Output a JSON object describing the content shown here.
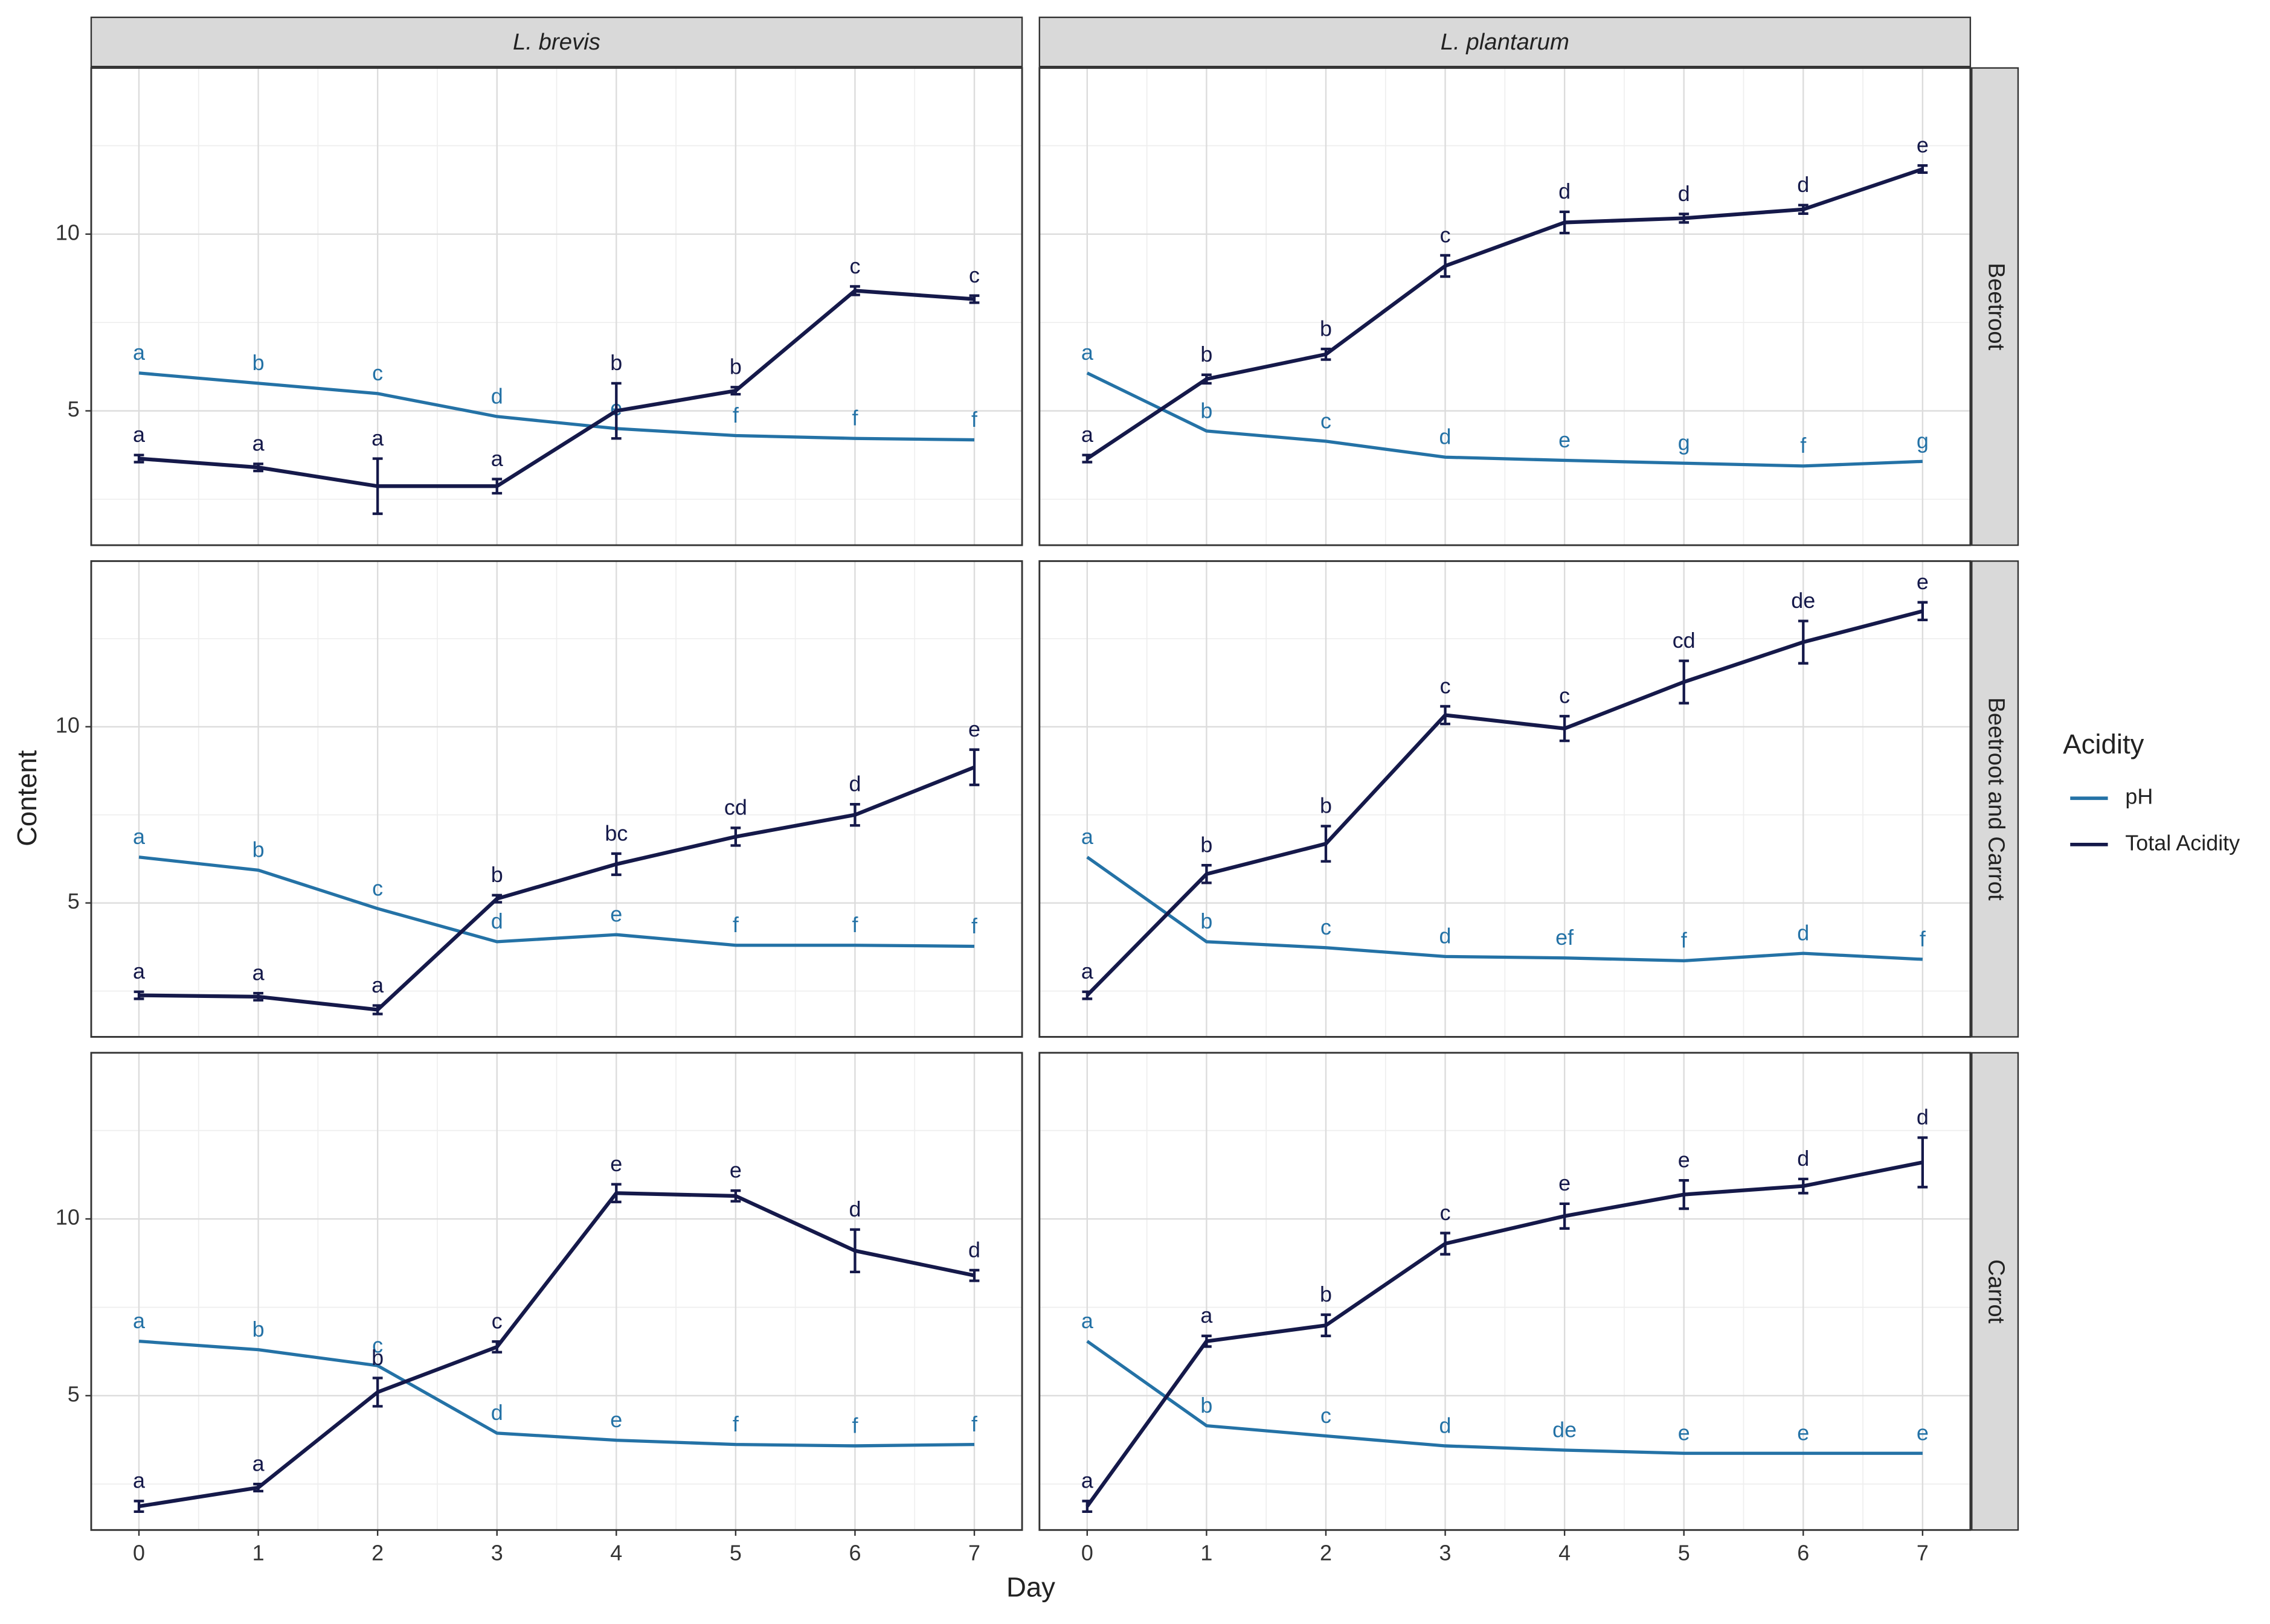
{
  "chart_data": {
    "type": "line",
    "x_label": "Day",
    "y_label": "Content",
    "legend_title": "Acidity",
    "columns": [
      "L. brevis",
      "L. plantarum"
    ],
    "rows": [
      "Beetroot",
      "Beetroot and Carrot",
      "Carrot"
    ],
    "series": [
      {
        "name": "pH",
        "color": "#2472a6"
      },
      {
        "name": "Total Acidity",
        "color": "#15194a"
      }
    ],
    "x": [
      0,
      1,
      2,
      3,
      4,
      5,
      6,
      7
    ],
    "xlim": [
      -0.4,
      7.4
    ],
    "xticks": [
      0,
      1,
      2,
      3,
      4,
      5,
      6,
      7
    ],
    "x_minor_ticks": [
      0.5,
      1.5,
      2.5,
      3.5,
      4.5,
      5.5,
      6.5
    ],
    "ylim": [
      1.2,
      14.7
    ],
    "yticks": [
      5,
      10
    ],
    "y_minor_ticks": [
      2.5,
      7.5,
      12.5
    ],
    "grid": true,
    "panels": [
      {
        "series": [
          {
            "values": [
              6.07,
              5.78,
              5.49,
              4.84,
              4.5,
              4.3,
              4.22,
              4.18
            ],
            "labels": [
              "a",
              "b",
              "c",
              "d",
              "e",
              "f",
              "f",
              "f"
            ]
          },
          {
            "values": [
              3.65,
              3.4,
              2.87,
              2.87,
              5.0,
              5.57,
              8.4,
              8.16
            ],
            "errors": [
              0.1,
              0.1,
              0.78,
              0.2,
              0.78,
              0.1,
              0.12,
              0.1
            ],
            "labels": [
              "a",
              "a",
              "a",
              "a",
              "b",
              "b",
              "c",
              "c"
            ]
          }
        ]
      },
      {
        "series": [
          {
            "values": [
              6.07,
              4.43,
              4.14,
              3.69,
              3.6,
              3.52,
              3.44,
              3.57
            ],
            "labels": [
              "a",
              "b",
              "c",
              "d",
              "e",
              "g",
              "f",
              "g"
            ]
          },
          {
            "values": [
              3.65,
              5.9,
              6.6,
              9.1,
              10.33,
              10.45,
              10.7,
              11.84
            ],
            "errors": [
              0.1,
              0.12,
              0.15,
              0.3,
              0.3,
              0.12,
              0.12,
              0.1
            ],
            "labels": [
              "a",
              "b",
              "b",
              "c",
              "d",
              "d",
              "d",
              "e"
            ]
          }
        ]
      },
      {
        "series": [
          {
            "values": [
              6.3,
              5.93,
              4.84,
              3.9,
              4.1,
              3.8,
              3.8,
              3.77
            ],
            "labels": [
              "a",
              "b",
              "c",
              "d",
              "e",
              "f",
              "f",
              "f"
            ]
          },
          {
            "values": [
              2.38,
              2.34,
              1.97,
              5.12,
              6.1,
              6.88,
              7.5,
              8.85
            ],
            "errors": [
              0.1,
              0.1,
              0.12,
              0.1,
              0.3,
              0.25,
              0.3,
              0.5
            ],
            "labels": [
              "a",
              "a",
              "a",
              "b",
              "bc",
              "cd",
              "d",
              "e"
            ]
          }
        ]
      },
      {
        "series": [
          {
            "values": [
              6.3,
              3.9,
              3.73,
              3.48,
              3.44,
              3.36,
              3.57,
              3.4
            ],
            "labels": [
              "a",
              "b",
              "c",
              "d",
              "ef",
              "f",
              "d",
              "f"
            ]
          },
          {
            "values": [
              2.38,
              5.82,
              6.68,
              10.33,
              9.95,
              11.27,
              12.4,
              13.28
            ],
            "errors": [
              0.1,
              0.25,
              0.5,
              0.25,
              0.35,
              0.6,
              0.6,
              0.25
            ],
            "labels": [
              "a",
              "b",
              "b",
              "c",
              "c",
              "cd",
              "de",
              "e"
            ]
          }
        ]
      },
      {
        "series": [
          {
            "values": [
              6.54,
              6.3,
              5.85,
              3.94,
              3.74,
              3.62,
              3.58,
              3.62
            ],
            "labels": [
              "a",
              "b",
              "c",
              "d",
              "e",
              "f",
              "f",
              "f"
            ]
          },
          {
            "values": [
              1.87,
              2.4,
              5.1,
              6.38,
              10.73,
              10.65,
              9.1,
              8.4
            ],
            "errors": [
              0.15,
              0.1,
              0.4,
              0.15,
              0.25,
              0.15,
              0.6,
              0.15
            ],
            "labels": [
              "a",
              "a",
              "b",
              "c",
              "e",
              "e",
              "d",
              "d"
            ]
          }
        ]
      },
      {
        "series": [
          {
            "values": [
              6.54,
              4.15,
              3.86,
              3.58,
              3.46,
              3.37,
              3.37,
              3.37
            ],
            "labels": [
              "a",
              "b",
              "c",
              "d",
              "de",
              "e",
              "e",
              "e"
            ]
          },
          {
            "values": [
              1.87,
              6.54,
              6.99,
              9.3,
              10.08,
              10.69,
              10.93,
              11.6
            ],
            "errors": [
              0.15,
              0.15,
              0.3,
              0.3,
              0.35,
              0.4,
              0.2,
              0.7
            ],
            "labels": [
              "a",
              "a",
              "b",
              "c",
              "e",
              "e",
              "d",
              "d"
            ]
          }
        ]
      }
    ]
  }
}
